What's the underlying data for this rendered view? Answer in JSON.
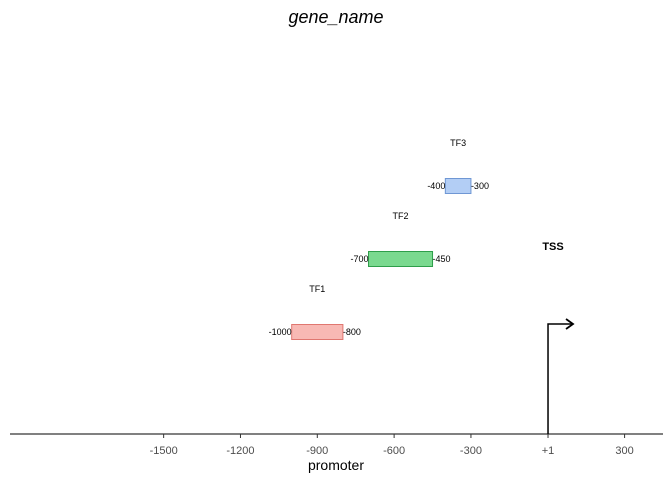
{
  "chart_data": {
    "type": "gene-promoter-diagram",
    "title": "gene_name",
    "xlabel": "promoter",
    "xlim": [
      -2100,
      450
    ],
    "ticks": [
      {
        "value": -1500,
        "label": "-1500"
      },
      {
        "value": -1200,
        "label": "-1200"
      },
      {
        "value": -900,
        "label": "-900"
      },
      {
        "value": -600,
        "label": "-600"
      },
      {
        "value": -300,
        "label": "-300"
      },
      {
        "value": 1,
        "label": "+1"
      },
      {
        "value": 300,
        "label": "300"
      }
    ],
    "series": [
      {
        "name": "TF1",
        "start": -1000,
        "end": -800,
        "start_label": "-1000",
        "end_label": "-800",
        "level": 1,
        "color": "#f8b9b4",
        "stroke": "#e07770"
      },
      {
        "name": "TF2",
        "start": -700,
        "end": -450,
        "start_label": "-700",
        "end_label": "-450",
        "level": 2,
        "color": "#7ad98f",
        "stroke": "#2e9e4a"
      },
      {
        "name": "TF3",
        "start": -400,
        "end": -300,
        "start_label": "-400",
        "end_label": "-300",
        "level": 3,
        "color": "#b3cef5",
        "stroke": "#6f97d4"
      }
    ],
    "tss": {
      "label": "TSS",
      "position": 1
    },
    "grid": false,
    "legend": "none"
  }
}
